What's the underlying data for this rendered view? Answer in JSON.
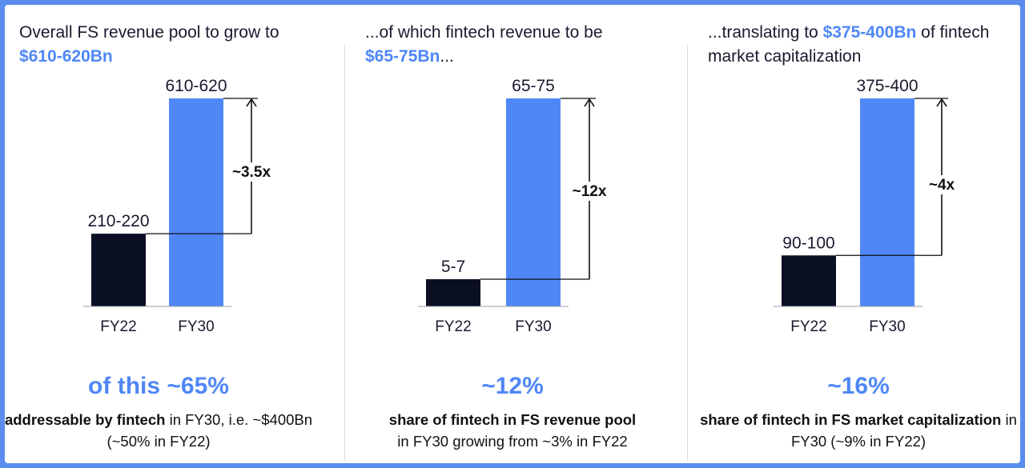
{
  "colors": {
    "fy22": "#0b0f24",
    "fy30": "#4f87f7",
    "accent": "#4f87f7",
    "border": "#5b8def"
  },
  "panels": [
    {
      "heading_pre": "Overall FS revenue pool to grow to",
      "heading_highlight": "$610-620Bn",
      "heading_post": "",
      "big_stat": "of this ~65%",
      "desc_bold": "addressable by fintech",
      "desc_rest": " in FY30, i.e. ~$400Bn (~50% in FY22)"
    },
    {
      "heading_pre": "...of which fintech revenue to be",
      "heading_highlight": "$65-75Bn",
      "heading_post": "...",
      "big_stat": "~12%",
      "desc_bold": "share of fintech in FS revenue pool",
      "desc_rest": " in FY30 growing from ~3% in FY22"
    },
    {
      "heading_pre": "...translating to ",
      "heading_highlight": "$375-400Bn",
      "heading_post": " of fintech market capitalization",
      "big_stat": "~16%",
      "desc_bold": "share of fintech in FS market capitalization",
      "desc_rest": " in FY30 (~9% in FY22)"
    }
  ],
  "chart_data": [
    {
      "type": "bar",
      "categories": [
        "FY22",
        "FY30"
      ],
      "values": [
        215,
        615
      ],
      "data_labels": [
        "210-220",
        "610-620"
      ],
      "multiplier": "~3.5x",
      "unit": "$Bn"
    },
    {
      "type": "bar",
      "categories": [
        "FY22",
        "FY30"
      ],
      "values": [
        6,
        70
      ],
      "data_labels": [
        "5-7",
        "65-75"
      ],
      "multiplier": "~12x",
      "unit": "$Bn"
    },
    {
      "type": "bar",
      "categories": [
        "FY22",
        "FY30"
      ],
      "values": [
        95,
        387.5
      ],
      "data_labels": [
        "90-100",
        "375-400"
      ],
      "multiplier": "~4x",
      "unit": "$Bn"
    }
  ]
}
